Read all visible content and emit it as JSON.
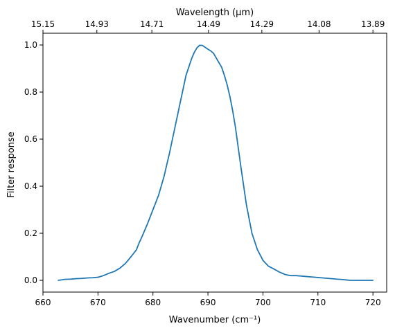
{
  "chart_data": {
    "type": "line",
    "title": "",
    "xlabel": "Wavenumber (cm⁻¹)",
    "ylabel": "Filter response",
    "top_xlabel": "Wavelength (μm)",
    "xlim": [
      660,
      722.5
    ],
    "ylim": [
      -0.05,
      1.05
    ],
    "xticks": [
      660,
      670,
      680,
      690,
      700,
      710,
      720
    ],
    "yticks": [
      0.0,
      0.2,
      0.4,
      0.6,
      0.8,
      1.0
    ],
    "xtick_labels": [
      "660",
      "670",
      "680",
      "690",
      "700",
      "710",
      "720"
    ],
    "ytick_labels": [
      "0.0",
      "0.2",
      "0.4",
      "0.6",
      "0.8",
      "1.0"
    ],
    "top_ticks": [
      {
        "label": "15.15",
        "x": 660.0
      },
      {
        "label": "14.93",
        "x": 669.8
      },
      {
        "label": "14.71",
        "x": 679.8
      },
      {
        "label": "14.49",
        "x": 690.1
      },
      {
        "label": "14.29",
        "x": 699.8
      },
      {
        "label": "14.08",
        "x": 710.2
      },
      {
        "label": "13.89",
        "x": 720.0
      }
    ],
    "grid": false,
    "line_color": "#1f77b4",
    "series": [
      {
        "x": [
          662.8,
          664.0,
          665.0,
          666.0,
          667.0,
          668.0,
          669.0,
          670.0,
          671.0,
          672.0,
          673.0,
          674.0,
          675.0,
          676.0,
          677.0,
          677.5,
          678.0,
          679.0,
          680.0,
          681.0,
          682.0,
          683.0,
          684.0,
          685.0,
          686.0,
          687.0,
          687.5,
          688.0,
          688.5,
          689.0,
          689.5,
          690.0,
          690.5,
          691.0,
          691.5,
          692.0,
          692.5,
          693.0,
          693.5,
          694.0,
          694.5,
          695.0,
          696.0,
          697.0,
          698.0,
          699.0,
          700.0,
          701.0,
          702.0,
          703.0,
          704.0,
          705.0,
          706.0,
          707.0,
          708.0,
          709.0,
          710.0,
          711.0,
          712.0,
          713.0,
          714.0,
          715.0,
          715.8,
          716.5,
          718.0,
          720.0
        ],
        "y": [
          0.0,
          0.004,
          0.005,
          0.007,
          0.008,
          0.01,
          0.011,
          0.013,
          0.02,
          0.03,
          0.038,
          0.052,
          0.072,
          0.1,
          0.13,
          0.16,
          0.185,
          0.24,
          0.3,
          0.36,
          0.44,
          0.54,
          0.65,
          0.76,
          0.87,
          0.94,
          0.968,
          0.988,
          0.999,
          0.998,
          0.99,
          0.982,
          0.975,
          0.965,
          0.945,
          0.925,
          0.905,
          0.87,
          0.83,
          0.78,
          0.72,
          0.65,
          0.48,
          0.32,
          0.2,
          0.13,
          0.085,
          0.06,
          0.048,
          0.035,
          0.025,
          0.02,
          0.02,
          0.018,
          0.016,
          0.014,
          0.012,
          0.01,
          0.008,
          0.006,
          0.004,
          0.002,
          0.0,
          0.0,
          0.0,
          0.0
        ]
      }
    ]
  }
}
